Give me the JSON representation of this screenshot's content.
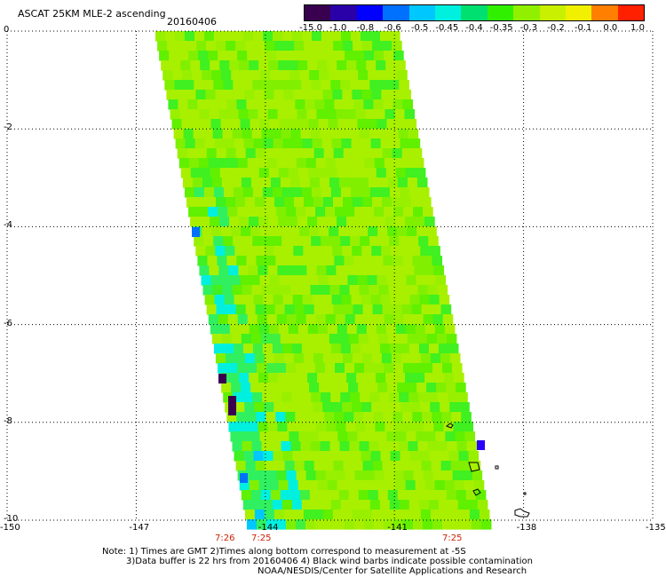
{
  "header": {
    "title": "ASCAT 25KM MLE-2 ascending",
    "date": "20160406"
  },
  "colorbar": {
    "labels": [
      "-15.0",
      "-1.0",
      "-0.8",
      "-0.6",
      "-0.5",
      "-0.45",
      "-0.4",
      "-0.35",
      "-0.3",
      "-0.2",
      "-0.1",
      "0.0",
      "1.0"
    ],
    "colors": [
      "#3a0050",
      "#2a00a8",
      "#0000ff",
      "#0070ff",
      "#00c8ff",
      "#00f0e0",
      "#00e070",
      "#30f000",
      "#90f000",
      "#c8f000",
      "#f0f000",
      "#ff8000",
      "#ff2000"
    ]
  },
  "axes": {
    "x_ticks": [
      "-150",
      "-147",
      "-144",
      "-141",
      "-138",
      "-135"
    ],
    "y_ticks": [
      "0",
      "-2",
      "-4",
      "-6",
      "-8",
      "-10"
    ],
    "xlim": [
      -150,
      -135
    ],
    "ylim": [
      -10,
      0
    ]
  },
  "times": [
    "7:26",
    "7:25",
    "7:25"
  ],
  "notes": {
    "line1": "Note: 1) Times are GMT 2)Times along bottom correspond to measurement at -5S",
    "line2": "3)Data buffer is 22 hrs from 20160406 4) Black wind barbs indicate possible contamination",
    "line3": "NOAA/NESDIS/Center for Satellite Applications and Research"
  },
  "swath": {
    "dominant_color": "#a8f000",
    "secondary_color": "#50f000",
    "edge_color": "#00f0e0"
  }
}
